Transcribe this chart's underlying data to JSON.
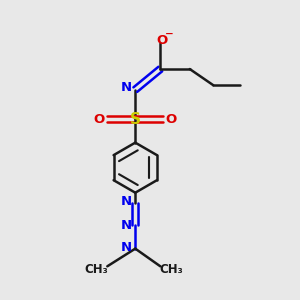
{
  "bg_color": "#e8e8e8",
  "bond_color": "#1a1a1a",
  "N_color": "#0000ee",
  "O_color": "#dd0000",
  "S_color": "#cccc00",
  "line_width": 1.8,
  "fig_size": [
    3.0,
    3.0
  ],
  "dpi": 100,
  "xlim": [
    0,
    10
  ],
  "ylim": [
    0,
    10
  ]
}
